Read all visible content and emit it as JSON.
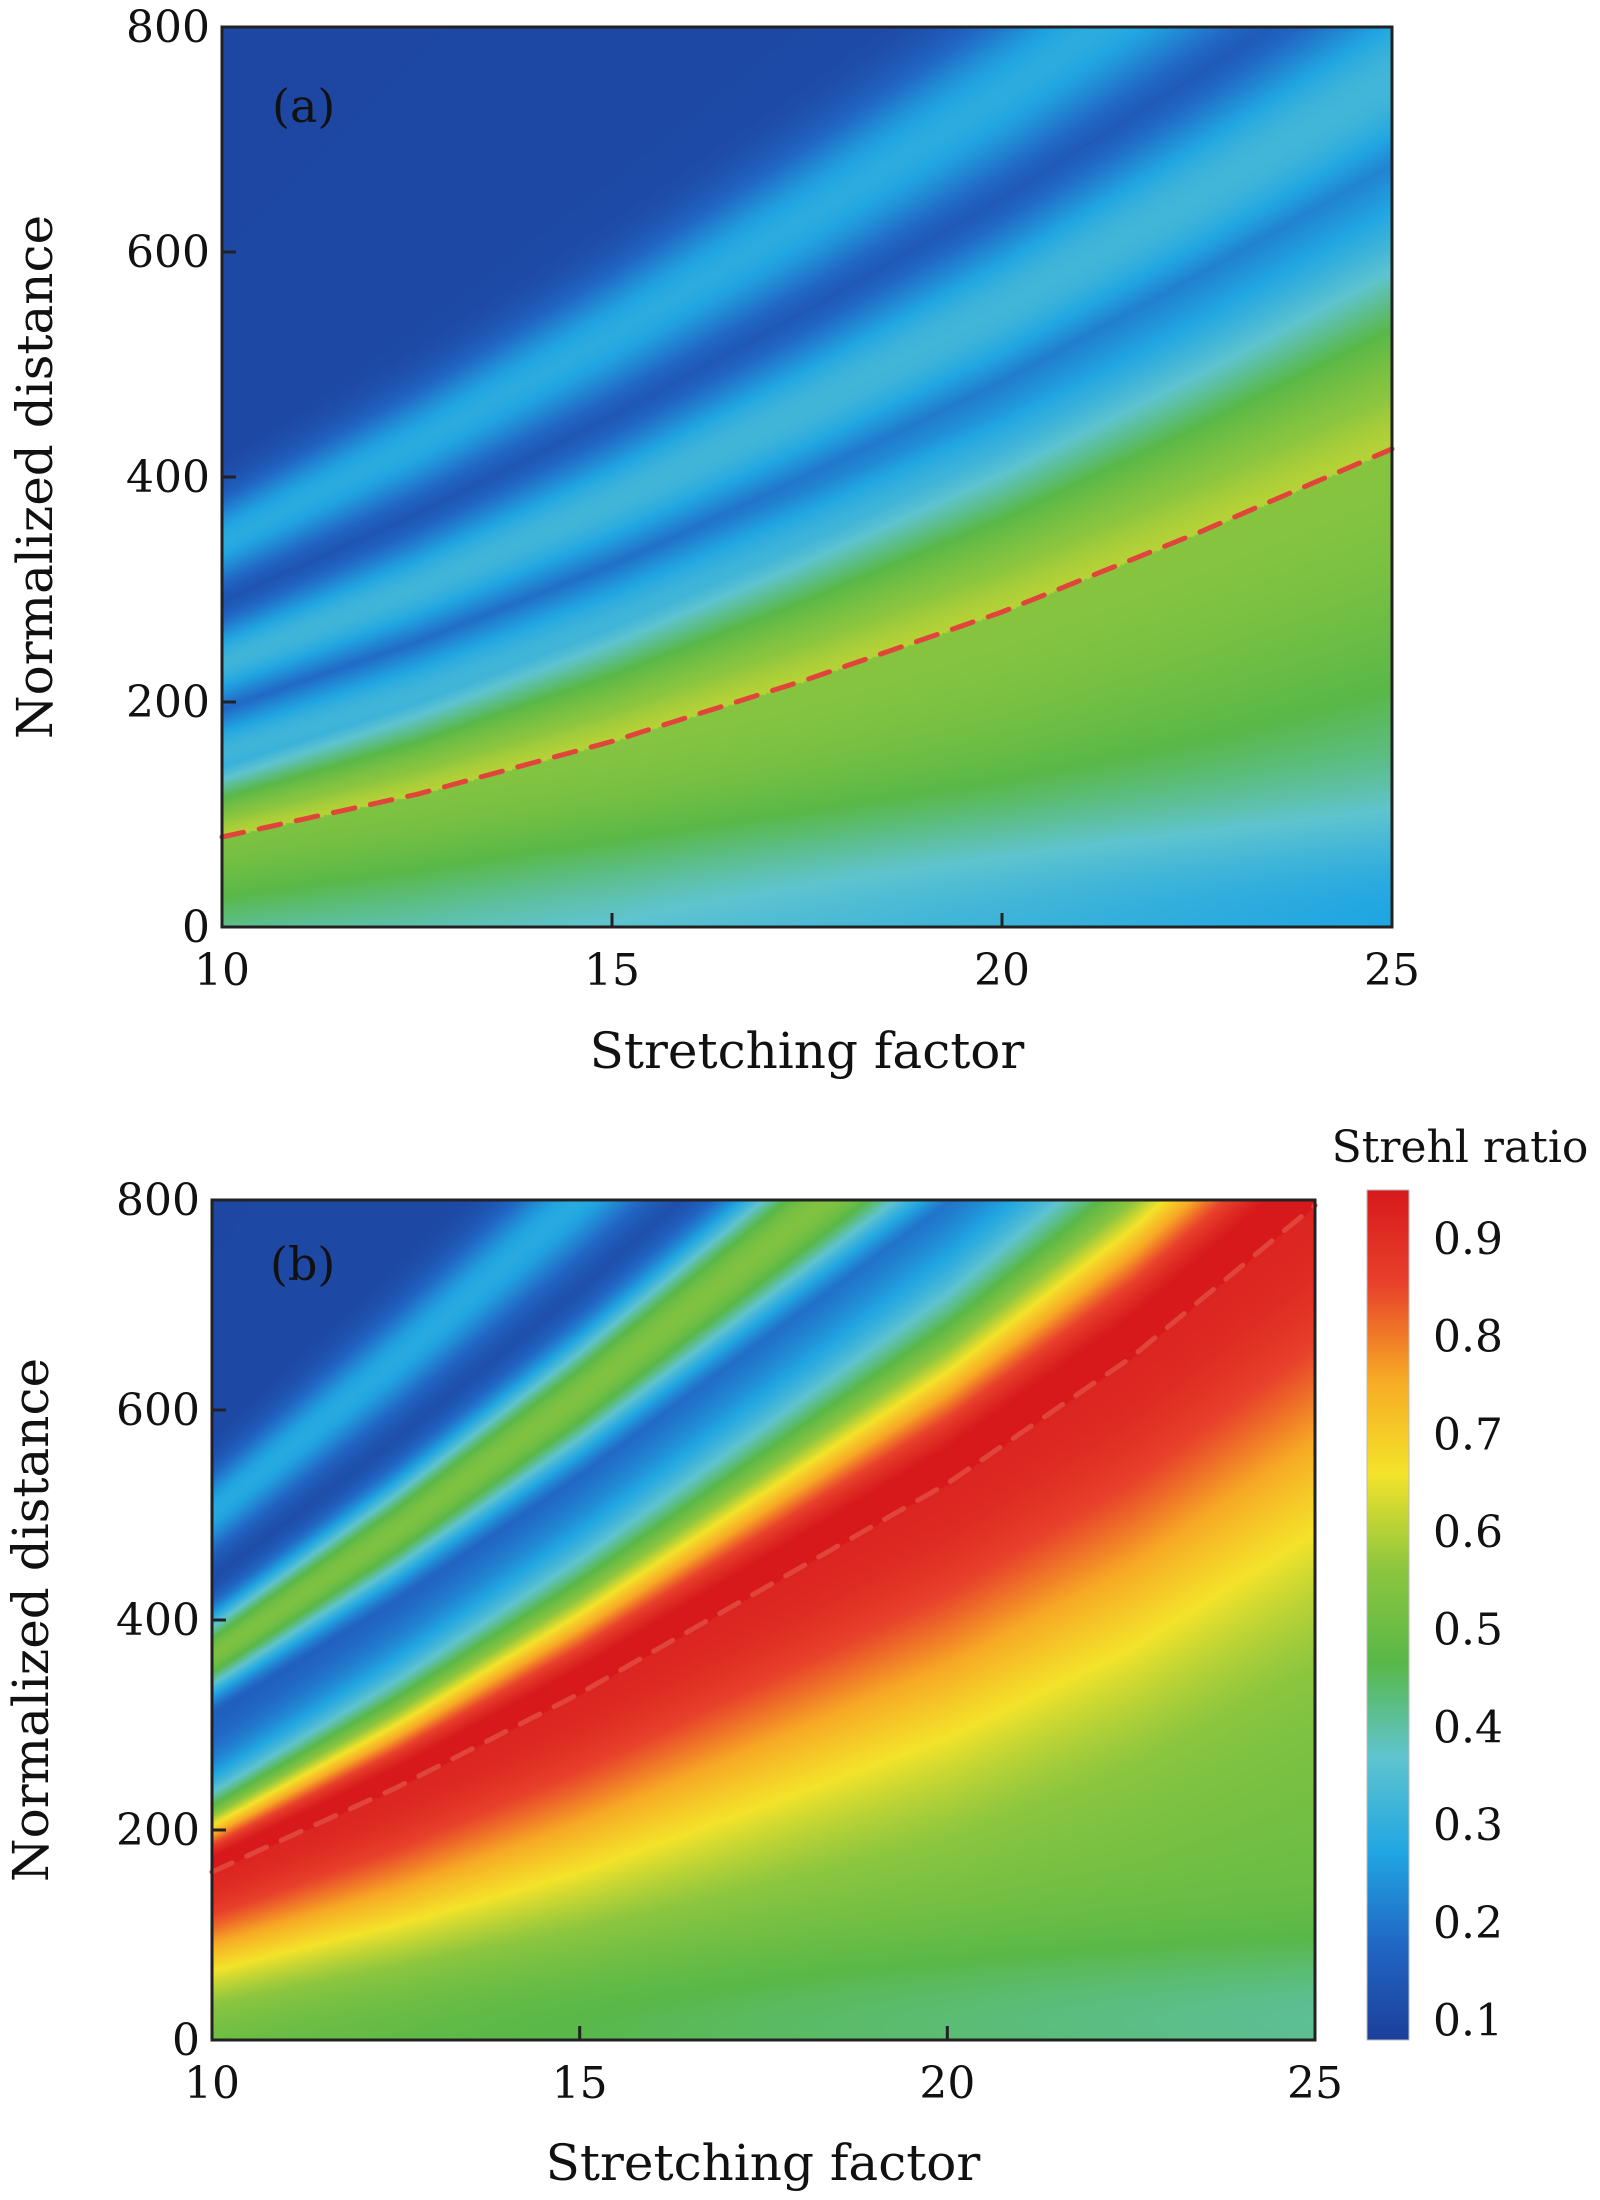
{
  "chart_data": [
    {
      "type": "heatmap",
      "panel_label": "(a)",
      "xlabel": "Stretching factor",
      "ylabel": "Normalized distance",
      "xlim": [
        10,
        25
      ],
      "ylim": [
        0,
        800
      ],
      "x_ticks": [
        "10",
        "15",
        "20",
        "25"
      ],
      "y_ticks": [
        "0",
        "200",
        "400",
        "600",
        "800"
      ],
      "x_tick_values": [
        10,
        15,
        20,
        25
      ],
      "y_tick_values": [
        0,
        200,
        400,
        600,
        800
      ],
      "peak_strehl": 0.55,
      "optimal_path": {
        "x": [
          10,
          12.5,
          15,
          17.5,
          20,
          22.5,
          25
        ],
        "y": [
          80,
          118,
          165,
          220,
          280,
          350,
          425
        ]
      },
      "bands": {
        "base": 0.32,
        "floor": 0.1,
        "secondary_lobes": [
          {
            "offset": 95,
            "level": 0.3
          },
          {
            "offset": 195,
            "level": 0.32
          },
          {
            "offset": 330,
            "level": 0.3
          }
        ]
      }
    },
    {
      "type": "heatmap",
      "panel_label": "(b)",
      "xlabel": "Stretching factor",
      "ylabel": "Normalized distance",
      "xlim": [
        10,
        25
      ],
      "ylim": [
        0,
        800
      ],
      "x_ticks": [
        "10",
        "15",
        "20",
        "25"
      ],
      "y_ticks": [
        "0",
        "200",
        "400",
        "600",
        "800"
      ],
      "x_tick_values": [
        10,
        15,
        20,
        25
      ],
      "y_tick_values": [
        0,
        200,
        400,
        600,
        800
      ],
      "peak_strehl": 0.92,
      "optimal_path": {
        "x": [
          10,
          12.5,
          15,
          17.5,
          20,
          22.5,
          25
        ],
        "y": [
          160,
          240,
          330,
          430,
          530,
          650,
          795
        ]
      },
      "bands": {
        "base": 0.5,
        "floor": 0.1,
        "secondary_lobes": [
          {
            "offset": 260,
            "level": 0.55
          },
          {
            "offset": 430,
            "level": 0.3
          }
        ]
      }
    }
  ],
  "colorbar": {
    "title": "Strehl ratio",
    "ticks": [
      "0.9",
      "0.8",
      "0.7",
      "0.6",
      "0.5",
      "0.4",
      "0.3",
      "0.2",
      "0.1"
    ],
    "tick_values": [
      0.9,
      0.8,
      0.7,
      0.6,
      0.5,
      0.4,
      0.3,
      0.2,
      0.1
    ],
    "range": [
      0.08,
      0.95
    ],
    "colormap": [
      "#1c3f9a",
      "#2166c4",
      "#21a6e2",
      "#5fc4cf",
      "#59b848",
      "#8dc63f",
      "#f4e32a",
      "#f7a925",
      "#e8412b",
      "#d7191c"
    ]
  },
  "colors": {
    "dashed_line": "#e0443a",
    "frame": "#222222",
    "panel_label_text": "#ffffff"
  }
}
